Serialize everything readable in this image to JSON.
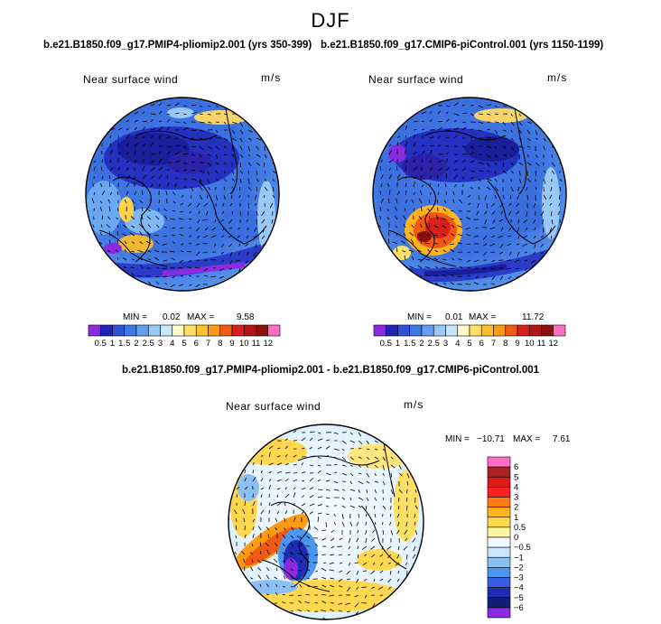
{
  "figure": {
    "season": "DJF"
  },
  "panels": [
    {
      "run": "b.e21.B1850.f09_g17.PMIP4-pliomip2.001 (yrs 350-399)",
      "variable": "Near surface wind",
      "units": "m/s",
      "min_label": "MIN =",
      "min": "0.02",
      "max_label": "MAX =",
      "max": "9.58"
    },
    {
      "run": "b.e21.B1850.f09_g17.CMIP6-piControl.001 (yrs 1150-1199)",
      "variable": "Near surface wind",
      "units": "m/s",
      "min_label": "MIN =",
      "min": "0.01",
      "max_label": "MAX =",
      "max": "11.72"
    }
  ],
  "difference": {
    "title": "b.e21.B1850.f09_g17.PMIP4-pliomip2.001 - b.e21.B1850.f09_g17.CMIP6-piControl.001",
    "variable": "Near surface wind",
    "units": "m/s",
    "min_label": "MIN =",
    "min": "−10.71",
    "max_label": "MAX =",
    "max": "7.61"
  },
  "colorbars": {
    "absolute": {
      "labels": [
        "0.5",
        "1",
        "1.5",
        "2",
        "2.5",
        "3",
        "4",
        "5",
        "6",
        "7",
        "8",
        "9",
        "10",
        "11",
        "12"
      ],
      "colors": [
        "#8a2be2",
        "#2222bb",
        "#2e52d6",
        "#3c78e6",
        "#64a0f0",
        "#9ac8f8",
        "#c8e6fa",
        "#fffac8",
        "#ffe066",
        "#ffc02a",
        "#ff9a14",
        "#f05a14",
        "#d82020",
        "#b41414",
        "#8c1010",
        "#ff6ec4"
      ]
    },
    "difference": {
      "labels": [
        "6",
        "5",
        "4",
        "3",
        "2",
        "1",
        "0.5",
        "0",
        "−0.5",
        "−1",
        "−2",
        "−3",
        "−4",
        "−5",
        "−6"
      ],
      "colors": [
        "#ff6ec4",
        "#aa2222",
        "#dd1a1a",
        "#ff2020",
        "#ff7a14",
        "#ffb41e",
        "#ffd850",
        "#fff6a0",
        "#eefaff",
        "#c8e6fa",
        "#8cc0f5",
        "#4c96f0",
        "#3a5ee0",
        "#1e2eb4",
        "#121e78",
        "#8a2be2"
      ]
    }
  }
}
